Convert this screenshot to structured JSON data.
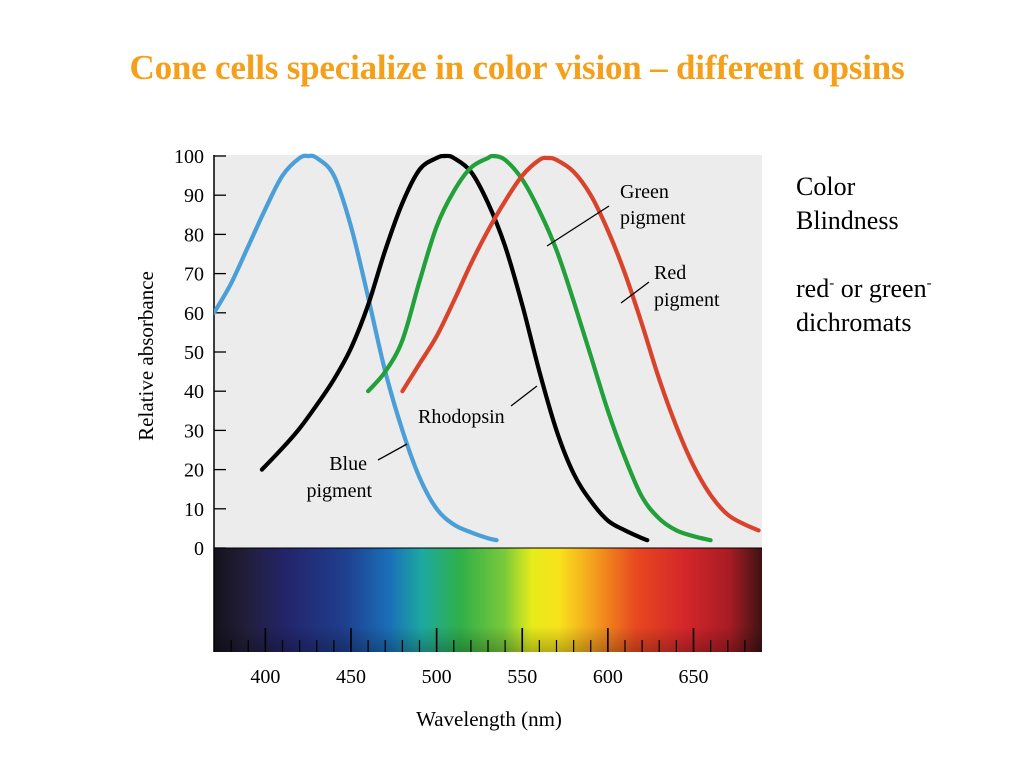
{
  "slide": {
    "title": "Cone cells specialize in color vision – different opsins",
    "side_text": {
      "line1": "Color",
      "line2": "Blindness",
      "red_word": "red",
      "red_sup": "-",
      "mid_text": " or green",
      "green_sup": "-",
      "line4": "dichromats"
    }
  },
  "chart_data": {
    "type": "line",
    "xlabel": "Wavelength (nm)",
    "ylabel": "Relative absorbance",
    "xlim": [
      370,
      690
    ],
    "ylim": [
      0,
      100
    ],
    "x_ticks": [
      400,
      450,
      500,
      550,
      600,
      650
    ],
    "y_ticks": [
      0,
      10,
      20,
      30,
      40,
      50,
      60,
      70,
      80,
      90,
      100
    ],
    "background": "#ececec",
    "spectrum_band": true,
    "series": [
      {
        "key": "blue",
        "color": "#4a9fd8",
        "x": [
          370,
          380,
          390,
          400,
          410,
          420,
          425,
          430,
          440,
          450,
          460,
          470,
          480,
          490,
          500,
          510,
          520,
          530,
          535
        ],
        "y": [
          60,
          67.5,
          77,
          86.5,
          95,
          99.5,
          100,
          99.5,
          95,
          82,
          64,
          45,
          30,
          18,
          10,
          6,
          4,
          2.5,
          2
        ]
      },
      {
        "key": "rhodopsin",
        "color": "#000000",
        "x": [
          398,
          410,
          420,
          430,
          440,
          450,
          460,
          470,
          480,
          490,
          500,
          505,
          510,
          520,
          530,
          540,
          550,
          560,
          570,
          580,
          590,
          600,
          610,
          620,
          623
        ],
        "y": [
          20,
          25.5,
          30.5,
          36.5,
          43,
          51,
          62,
          76,
          88,
          96.5,
          99.5,
          100,
          99.5,
          96,
          88,
          77,
          62,
          45,
          30,
          19,
          12,
          7,
          4.5,
          2.5,
          2
        ]
      },
      {
        "key": "green",
        "color": "#22a03a",
        "x": [
          460,
          470,
          480,
          490,
          500,
          510,
          520,
          530,
          533,
          540,
          550,
          560,
          570,
          580,
          590,
          600,
          610,
          620,
          630,
          640,
          650,
          660
        ],
        "y": [
          40,
          45,
          53,
          68,
          82,
          91,
          97,
          99.5,
          100,
          99,
          94,
          86,
          76,
          63,
          49,
          35,
          23,
          13,
          7.5,
          4.5,
          3,
          2
        ]
      },
      {
        "key": "red",
        "color": "#d9432b",
        "x": [
          480,
          490,
          500,
          510,
          520,
          530,
          540,
          550,
          560,
          565,
          570,
          580,
          590,
          600,
          610,
          620,
          630,
          640,
          650,
          660,
          670,
          680,
          688
        ],
        "y": [
          40,
          47,
          54,
          63,
          72.5,
          81,
          88.5,
          95,
          99,
          99.5,
          99,
          96,
          90,
          81,
          70,
          57,
          43,
          31,
          21,
          13.5,
          8.5,
          6,
          4.5
        ]
      }
    ],
    "annotations": [
      {
        "key": "green",
        "lines": [
          "Green",
          "pigment"
        ]
      },
      {
        "key": "red",
        "lines": [
          "Red",
          "pigment"
        ]
      },
      {
        "key": "rhodopsin",
        "lines": [
          "Rhodopsin"
        ]
      },
      {
        "key": "blue",
        "lines": [
          "Blue",
          "pigment"
        ]
      }
    ]
  }
}
